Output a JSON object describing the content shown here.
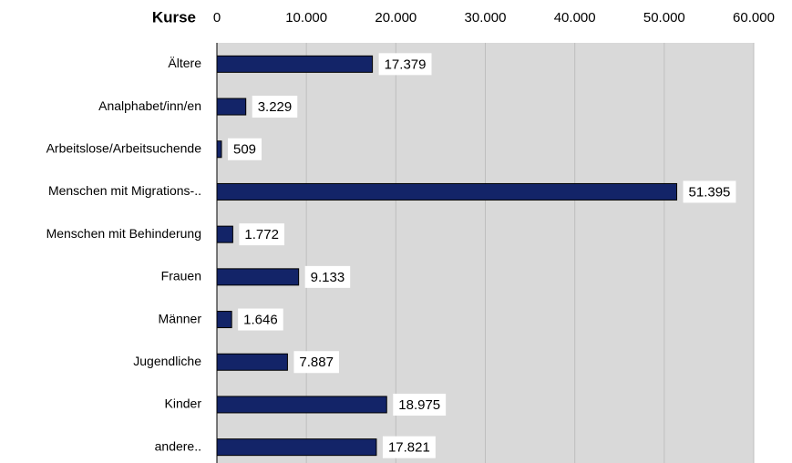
{
  "chart_data": {
    "type": "bar",
    "orientation": "horizontal",
    "title": "Kurse",
    "categories": [
      "Ältere",
      "Analphabet/inn/en",
      "Arbeitslose/Arbeitsuchende",
      "Menschen mit Migrations-..",
      "Menschen mit Behinderung",
      "Frauen",
      "Männer",
      "Jugendliche",
      "Kinder",
      "andere.."
    ],
    "values": [
      17379,
      3229,
      509,
      51395,
      1772,
      9133,
      1646,
      7887,
      18975,
      17821
    ],
    "value_labels": [
      "17.379",
      "3.229",
      "509",
      "51.395",
      "1.772",
      "9.133",
      "1.646",
      "7.887",
      "18.975",
      "17.821"
    ],
    "color": "#132468",
    "xlim": [
      0,
      60000
    ],
    "xticks": [
      0,
      {
        "value": 10000,
        "label": "10.000"
      },
      {
        "value": 20000,
        "label": "20.000"
      },
      {
        "value": 30000,
        "label": "30.000"
      },
      {
        "value": 40000,
        "label": "40.000"
      },
      {
        "value": 50000,
        "label": "50.000"
      },
      {
        "value": 60000,
        "label": "60.000"
      }
    ],
    "grid": true
  }
}
